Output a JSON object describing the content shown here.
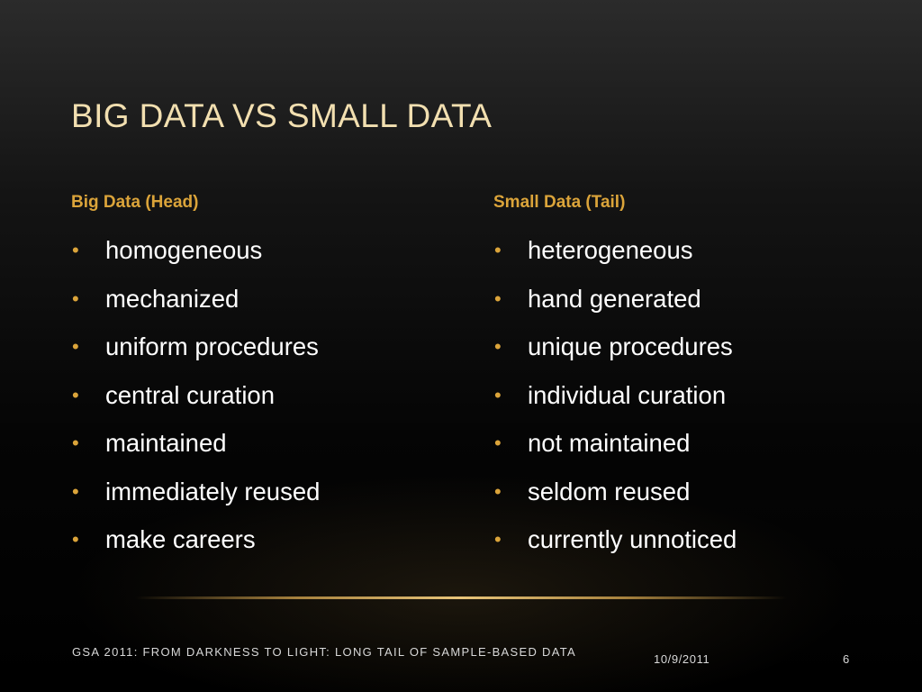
{
  "slide": {
    "title": "Big Data vs Small Data",
    "left_column": {
      "heading": "Big Data (Head)",
      "bullets": [
        "homogeneous",
        "mechanized",
        "uniform procedures",
        "central curation",
        "maintained",
        "immediately reused",
        "make careers"
      ]
    },
    "right_column": {
      "heading": "Small Data (Tail)",
      "bullets": [
        "heterogeneous",
        "hand generated",
        "unique procedures",
        "individual curation",
        "not maintained",
        "seldom reused",
        "currently unnoticed"
      ]
    },
    "bullet_glyph": "•",
    "footer": {
      "text": "GSA 2011: From Darkness to Light: Long Tail of Sample-Based Data",
      "date": "10/9/2011",
      "page_number": "6"
    }
  },
  "colors": {
    "title": "#f2dfb0",
    "accent": "#dba43a",
    "body_text": "#ffffff",
    "footer_text": "#d8d8d8",
    "background": "#000000"
  }
}
